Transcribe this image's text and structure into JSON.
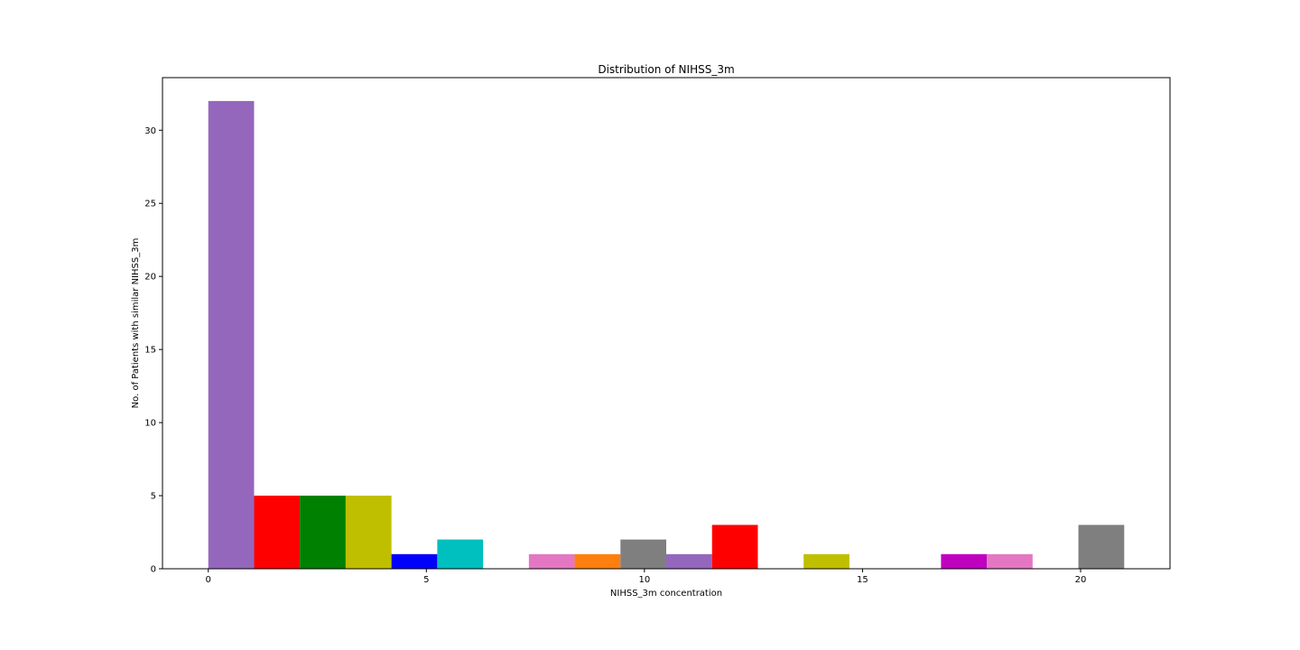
{
  "chart_data": {
    "type": "bar",
    "title": "Distribution of NIHSS_3m",
    "xlabel": "NIHSS_3m concentration",
    "ylabel": "No. of Patients with similar NIHSS_3m",
    "xlim": [
      -1.05,
      22.05
    ],
    "ylim": [
      0,
      33.6
    ],
    "bar_width": 1.05,
    "x_ticks": [
      0,
      5,
      10,
      15,
      20
    ],
    "y_ticks": [
      0,
      5,
      10,
      15,
      20,
      25,
      30
    ],
    "bars": [
      {
        "x": 0,
        "value": 32,
        "color": "#9467bd"
      },
      {
        "x": 1.05,
        "value": 5,
        "color": "#ff0000"
      },
      {
        "x": 2.1,
        "value": 5,
        "color": "#008000"
      },
      {
        "x": 3.15,
        "value": 5,
        "color": "#bfbf00"
      },
      {
        "x": 4.2,
        "value": 1,
        "color": "#0000ff"
      },
      {
        "x": 5.25,
        "value": 2,
        "color": "#00bfbf"
      },
      {
        "x": 7.35,
        "value": 1,
        "color": "#e377c2"
      },
      {
        "x": 8.4,
        "value": 1,
        "color": "#ff7f0e"
      },
      {
        "x": 9.45,
        "value": 2,
        "color": "#7f7f7f"
      },
      {
        "x": 10.5,
        "value": 1,
        "color": "#9467bd"
      },
      {
        "x": 11.55,
        "value": 3,
        "color": "#ff0000"
      },
      {
        "x": 13.65,
        "value": 1,
        "color": "#bfbf00"
      },
      {
        "x": 16.8,
        "value": 1,
        "color": "#bf00bf"
      },
      {
        "x": 17.85,
        "value": 1,
        "color": "#e377c2"
      },
      {
        "x": 19.95,
        "value": 3,
        "color": "#7f7f7f"
      }
    ]
  }
}
